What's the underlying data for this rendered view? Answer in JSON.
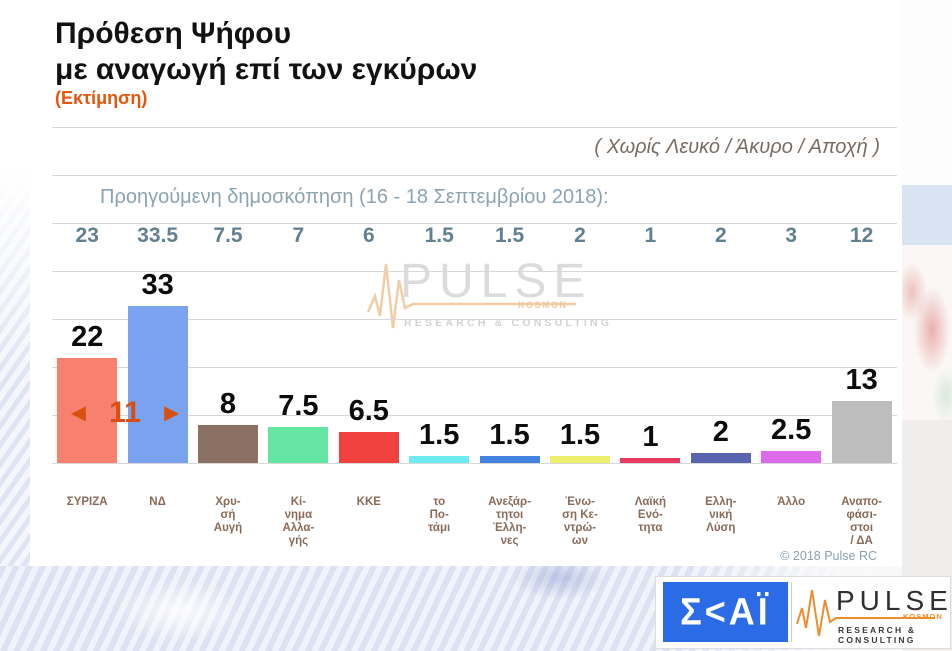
{
  "header": {
    "title_line1": "Πρόθεση Ψήφου",
    "title_line2": "με αναγωγή επί των εγκύρων",
    "estimate": "(Εκτίμηση)",
    "note": "( Χωρίς Λευκό / Άκυρο / Αποχή )",
    "previous_poll_heading": "Προηγούμενη δημοσκόπηση (16 - 18 Σεπτεμβρίου 2018):"
  },
  "chart_data": {
    "type": "bar",
    "title": "Πρόθεση Ψήφου με αναγωγή επί των εγκύρων (Εκτίμηση)",
    "subtitle": "( Χωρίς Λευκό / Άκυρο / Αποχή )",
    "xlabel": "",
    "ylabel": "",
    "ylim": [
      0,
      35
    ],
    "grid": true,
    "legend_position": "none",
    "categories": [
      "ΣΥΡΙΖΑ",
      "ΝΔ",
      "Χρυσή Αυγή",
      "Κίνημα Αλλαγής",
      "ΚΚΕ",
      "το Ποτάμι",
      "Ανεξάρτητοι Έλληνες",
      "Ένωση Κεντρώων",
      "Λαϊκή Ενότητα",
      "Ελληνική Λύση",
      "Άλλο",
      "Αναποφάσιστοι / ΔΑ"
    ],
    "series": [
      {
        "name": "Εκτίμηση",
        "values": [
          22,
          33,
          8,
          7.5,
          6.5,
          1.5,
          1.5,
          1.5,
          1,
          2,
          2.5,
          13
        ]
      },
      {
        "name": "Προηγούμενη δημοσκόπηση (16 - 18 Σεπτεμβρίου 2018)",
        "values": [
          23,
          33.5,
          7.5,
          7,
          6,
          1.5,
          1.5,
          2,
          1,
          2,
          3,
          12
        ]
      }
    ],
    "bar_colors": [
      "#f8806f",
      "#7ba2ef",
      "#8b7164",
      "#65e5a2",
      "#f1413f",
      "#6cecf2",
      "#4583e2",
      "#edee6b",
      "#e83a5f",
      "#5a64ae",
      "#db6bea",
      "#bdbdbd"
    ],
    "category_labels_display": [
      "ΣΥΡΙΖΑ",
      "ΝΔ",
      "Χρυ-\nσή\nΑυγή",
      "Κί-\nνημα\nΑλλα-\nγής",
      "ΚΚΕ",
      "το\nΠο-\nτάμι",
      "Ανεξάρ-\nτητοι\nΈλλη-\nνες",
      "Ένω-\nση Κε-\nντρώ-\nων",
      "Λαϊκή\nΕνό-\nτητα",
      "Ελλη-\nνική\nΛύση",
      "Άλλο",
      "Αναπο-\nφάσι-\nστοι\n/ ΔΑ"
    ],
    "gap_annotation": {
      "left_arrow": "◄",
      "value": "11",
      "right_arrow": "►"
    },
    "copyright": "© 2018 Pulse RC"
  },
  "watermark": {
    "brand": "PULSE",
    "sub_brand": "KOSMON",
    "tagline": "RESEARCH & CONSULTING"
  },
  "footer_logos": {
    "skai_text": "Σ<ΑΪ",
    "pulse_brand": "PULSE",
    "pulse_sub_brand": "KOSMON",
    "pulse_tagline": "RESEARCH & CONSULTING"
  },
  "colors": {
    "estimate_orange": "#e4570e",
    "annotation_orange": "#d8500f",
    "previous_values_blue": "#62808f",
    "category_brown": "#8a6a58",
    "skai_blue": "#2b6ce6",
    "pulse_orange": "#ee8d2e",
    "gridline_gray": "#d8d8d8"
  }
}
